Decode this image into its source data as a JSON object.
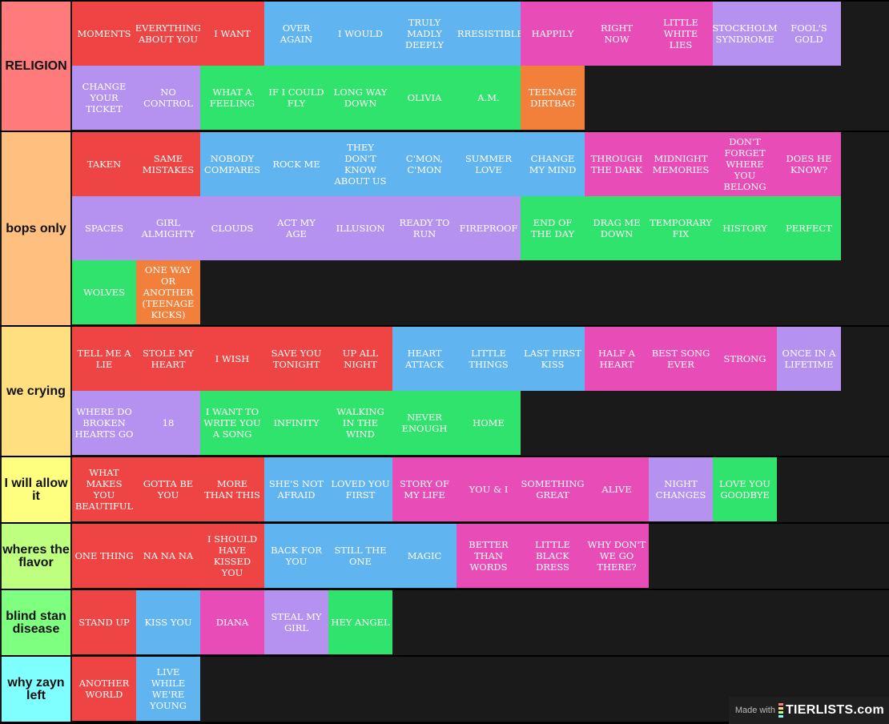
{
  "colors": {
    "red": "#ef4444",
    "blue": "#60b4f0",
    "pink": "#e84cb6",
    "lavender": "#b592ef",
    "green": "#2fe36c",
    "orange": "#f2803a"
  },
  "tiers": [
    {
      "label": "RELIGION",
      "color": "#ff7b7b",
      "items": [
        {
          "text": "MOMENTS",
          "color": "red"
        },
        {
          "text": "EVERYTHING ABOUT YOU",
          "color": "red"
        },
        {
          "text": "I WANT",
          "color": "red"
        },
        {
          "text": "OVER AGAIN",
          "color": "blue"
        },
        {
          "text": "I WOULD",
          "color": "blue"
        },
        {
          "text": "TRULY MADLY DEEPLY",
          "color": "blue"
        },
        {
          "text": "IRRESISTIBLE",
          "color": "blue"
        },
        {
          "text": "HAPPILY",
          "color": "pink"
        },
        {
          "text": "RIGHT NOW",
          "color": "pink"
        },
        {
          "text": "LITTLE WHITE LIES",
          "color": "pink"
        },
        {
          "text": "STOCKHOLM SYNDROME",
          "color": "lavender"
        },
        {
          "text": "FOOL'S GOLD",
          "color": "lavender"
        },
        {
          "text": "CHANGE YOUR TICKET",
          "color": "lavender"
        },
        {
          "text": "NO CONTROL",
          "color": "lavender"
        },
        {
          "text": "WHAT A FEELING",
          "color": "green"
        },
        {
          "text": "IF I COULD FLY",
          "color": "green"
        },
        {
          "text": "LONG WAY DOWN",
          "color": "green"
        },
        {
          "text": "OLIVIA",
          "color": "green"
        },
        {
          "text": "A.M.",
          "color": "green"
        },
        {
          "text": "TEENAGE DIRTBAG",
          "color": "orange"
        }
      ]
    },
    {
      "label": "bops only",
      "color": "#ffbf7f",
      "items": [
        {
          "text": "TAKEN",
          "color": "red"
        },
        {
          "text": "SAME MISTAKES",
          "color": "red"
        },
        {
          "text": "NOBODY COMPARES",
          "color": "blue"
        },
        {
          "text": "ROCK ME",
          "color": "blue"
        },
        {
          "text": "THEY DON'T KNOW ABOUT US",
          "color": "blue"
        },
        {
          "text": "C'MON, C'MON",
          "color": "blue"
        },
        {
          "text": "SUMMER LOVE",
          "color": "blue"
        },
        {
          "text": "CHANGE MY MIND",
          "color": "blue"
        },
        {
          "text": "THROUGH THE DARK",
          "color": "pink"
        },
        {
          "text": "MIDNIGHT MEMORIES",
          "color": "pink"
        },
        {
          "text": "DON'T FORGET WHERE YOU BELONG",
          "color": "pink"
        },
        {
          "text": "DOES HE KNOW?",
          "color": "pink"
        },
        {
          "text": "SPACES",
          "color": "lavender"
        },
        {
          "text": "GIRL ALMIGHTY",
          "color": "lavender"
        },
        {
          "text": "CLOUDS",
          "color": "lavender"
        },
        {
          "text": "ACT MY AGE",
          "color": "lavender"
        },
        {
          "text": "ILLUSION",
          "color": "lavender"
        },
        {
          "text": "READY TO RUN",
          "color": "lavender"
        },
        {
          "text": "FIREPROOF",
          "color": "lavender"
        },
        {
          "text": "END OF THE DAY",
          "color": "green"
        },
        {
          "text": "DRAG ME DOWN",
          "color": "green"
        },
        {
          "text": "TEMPORARY FIX",
          "color": "green"
        },
        {
          "text": "HISTORY",
          "color": "green"
        },
        {
          "text": "PERFECT",
          "color": "green"
        },
        {
          "text": "WOLVES",
          "color": "green"
        },
        {
          "text": "ONE WAY OR ANOTHER (TEENAGE KICKS)",
          "color": "orange"
        }
      ]
    },
    {
      "label": "we crying",
      "color": "#ffdf80",
      "items": [
        {
          "text": "TELL ME A LIE",
          "color": "red"
        },
        {
          "text": "STOLE MY HEART",
          "color": "red"
        },
        {
          "text": "I WISH",
          "color": "red"
        },
        {
          "text": "SAVE YOU TONIGHT",
          "color": "red"
        },
        {
          "text": "UP ALL NIGHT",
          "color": "red"
        },
        {
          "text": "HEART ATTACK",
          "color": "blue"
        },
        {
          "text": "LITTLE THINGS",
          "color": "blue"
        },
        {
          "text": "LAST FIRST KISS",
          "color": "blue"
        },
        {
          "text": "HALF A HEART",
          "color": "pink"
        },
        {
          "text": "BEST SONG EVER",
          "color": "pink"
        },
        {
          "text": "STRONG",
          "color": "pink"
        },
        {
          "text": "ONCE IN A LIFETIME",
          "color": "lavender"
        },
        {
          "text": "WHERE DO BROKEN HEARTS GO",
          "color": "lavender"
        },
        {
          "text": "18",
          "color": "lavender"
        },
        {
          "text": "I WANT TO WRITE YOU A SONG",
          "color": "green"
        },
        {
          "text": "INFINITY",
          "color": "green"
        },
        {
          "text": "WALKING IN THE WIND",
          "color": "green"
        },
        {
          "text": "NEVER ENOUGH",
          "color": "green"
        },
        {
          "text": "HOME",
          "color": "green"
        }
      ]
    },
    {
      "label": "I will allow it",
      "color": "#ffff7f",
      "items": [
        {
          "text": "WHAT MAKES YOU BEAUTIFUL",
          "color": "red"
        },
        {
          "text": "GOTTA BE YOU",
          "color": "red"
        },
        {
          "text": "MORE THAN THIS",
          "color": "red"
        },
        {
          "text": "SHE'S NOT AFRAID",
          "color": "blue"
        },
        {
          "text": "LOVED YOU FIRST",
          "color": "blue"
        },
        {
          "text": "STORY OF MY LIFE",
          "color": "pink"
        },
        {
          "text": "YOU & I",
          "color": "pink"
        },
        {
          "text": "SOMETHING GREAT",
          "color": "pink"
        },
        {
          "text": "ALIVE",
          "color": "pink"
        },
        {
          "text": "NIGHT CHANGES",
          "color": "lavender"
        },
        {
          "text": "LOVE YOU GOODBYE",
          "color": "green"
        }
      ]
    },
    {
      "label": "wheres the flavor",
      "color": "#bfff7f",
      "items": [
        {
          "text": "ONE THING",
          "color": "red"
        },
        {
          "text": "NA NA NA",
          "color": "red"
        },
        {
          "text": "I SHOULD HAVE KISSED YOU",
          "color": "red"
        },
        {
          "text": "BACK FOR YOU",
          "color": "blue"
        },
        {
          "text": "STILL THE ONE",
          "color": "blue"
        },
        {
          "text": "MAGIC",
          "color": "blue"
        },
        {
          "text": "BETTER THAN WORDS",
          "color": "pink"
        },
        {
          "text": "LITTLE BLACK DRESS",
          "color": "pink"
        },
        {
          "text": "WHY DON'T WE GO THERE?",
          "color": "pink"
        }
      ]
    },
    {
      "label": "blind stan disease",
      "color": "#7fff7f",
      "items": [
        {
          "text": "STAND UP",
          "color": "red"
        },
        {
          "text": "KISS YOU",
          "color": "blue"
        },
        {
          "text": "DIANA",
          "color": "pink"
        },
        {
          "text": "STEAL MY GIRL",
          "color": "lavender"
        },
        {
          "text": "HEY ANGEL",
          "color": "green"
        }
      ]
    },
    {
      "label": "why zayn left",
      "color": "#7fffff",
      "items": [
        {
          "text": "ANOTHER WORLD",
          "color": "red"
        },
        {
          "text": "LIVE WHILE WE'RE YOUNG",
          "color": "blue"
        }
      ]
    }
  ],
  "watermark": {
    "prefix": "Made with",
    "brand": "TIERLISTS.com",
    "bar_colors": [
      "#ff7f7f",
      "#ffdf7f",
      "#bfff7f",
      "#7fffff"
    ]
  }
}
